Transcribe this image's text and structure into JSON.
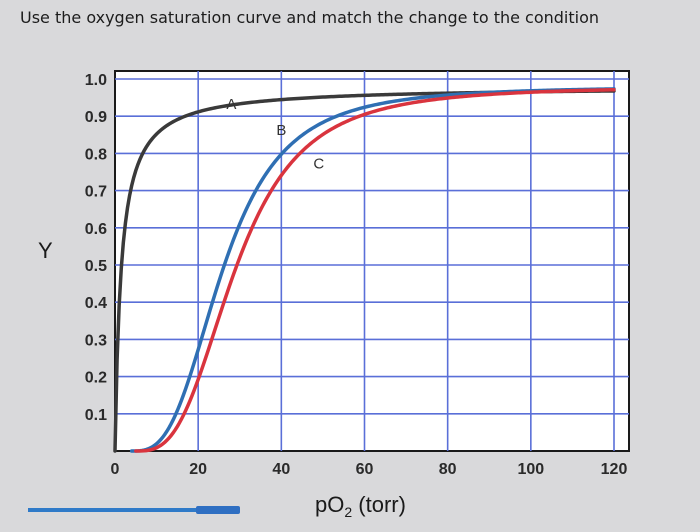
{
  "prompt": "Use the oxygen saturation curve and match the change to the condition",
  "chart_data": {
    "type": "line",
    "xlabel_main": "pO",
    "xlabel_sub": "2",
    "xlabel_unit": " (torr)",
    "ylabel": "Y",
    "xlim": [
      0,
      120
    ],
    "ylim": [
      0,
      1.0
    ],
    "x_ticks": [
      "0",
      "20",
      "40",
      "60",
      "80",
      "100",
      "120"
    ],
    "y_ticks": [
      "0.1",
      "0.2",
      "0.3",
      "0.4",
      "0.5",
      "0.6",
      "0.7",
      "0.8",
      "0.9",
      "1.0"
    ],
    "grid": true,
    "series": [
      {
        "label": "A",
        "color": "#3a3a3a",
        "p50": 1.5,
        "n": 1.0,
        "ymax": 0.98,
        "x0": 0,
        "label_at": [
          28,
          0.92
        ]
      },
      {
        "label": "B",
        "color": "#2f6fb3",
        "p50": 26,
        "n": 3.0,
        "ymax": 0.98,
        "x0": 4,
        "label_at": [
          40,
          0.85
        ]
      },
      {
        "label": "C",
        "color": "#d9343e",
        "p50": 29,
        "n": 3.0,
        "ymax": 0.98,
        "x0": 5,
        "label_at": [
          49,
          0.76
        ]
      }
    ]
  }
}
